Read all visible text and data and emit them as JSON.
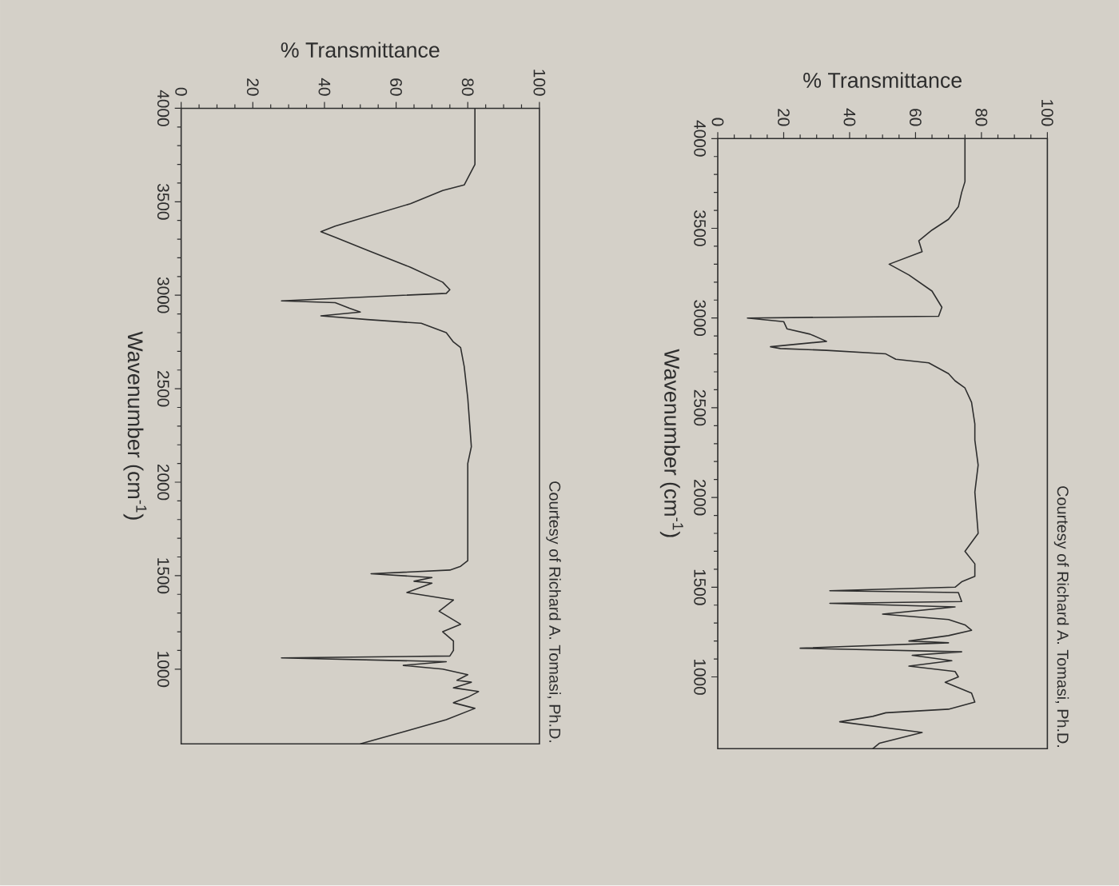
{
  "chart_data": [
    {
      "type": "line",
      "xlabel": "% Transmittance",
      "ylabel": "Wavenumber (cm$^{-1}$)",
      "color": "#2e2e2e",
      "xlim": [
        0,
        100
      ],
      "xticks": [
        0,
        20,
        40,
        60,
        80,
        100
      ],
      "ylim": [
        600,
        4000
      ],
      "yticks": [
        1000,
        1500,
        2000,
        2500,
        3000,
        3500,
        4000
      ],
      "annotations": [
        "Courtesy of Richard A. Tomasi, Ph.D."
      ],
      "x": [
        82,
        82,
        79,
        73,
        64,
        43,
        39,
        43,
        52,
        64,
        73,
        75,
        74,
        28,
        43,
        47,
        50,
        39,
        52,
        67,
        74,
        76,
        78,
        79,
        80,
        81,
        80,
        80,
        78,
        75,
        53,
        70,
        65,
        70,
        63,
        76,
        72,
        78,
        73,
        76,
        76,
        75,
        28,
        74,
        62,
        73,
        80,
        77,
        81,
        76,
        83,
        80,
        76,
        82,
        74,
        63,
        50
      ],
      "values": [
        4000,
        3700,
        3590,
        3560,
        3490,
        3370,
        3340,
        3310,
        3240,
        3150,
        3070,
        3030,
        3010,
        2970,
        2960,
        2930,
        2910,
        2890,
        2870,
        2850,
        2800,
        2750,
        2720,
        2620,
        2450,
        2190,
        2100,
        1580,
        1550,
        1530,
        1510,
        1490,
        1470,
        1460,
        1410,
        1370,
        1310,
        1240,
        1200,
        1150,
        1100,
        1070,
        1060,
        1040,
        1020,
        1000,
        970,
        940,
        930,
        900,
        880,
        850,
        820,
        790,
        730,
        670,
        600
      ]
    },
    {
      "type": "line",
      "xlabel": "% Transmittance",
      "ylabel": "Wavenumber (cm$^{-1}$)",
      "color": "#2e2e2e",
      "xlim": [
        0,
        100
      ],
      "xticks": [
        0,
        20,
        40,
        60,
        80,
        100
      ],
      "ylim": [
        600,
        4000
      ],
      "yticks": [
        1000,
        1500,
        2000,
        2500,
        3000,
        3500,
        4000
      ],
      "annotations": [
        "Courtesy of Richard A. Tomasi, Ph.D."
      ],
      "x": [
        75,
        75,
        74,
        73,
        70,
        65,
        61,
        62,
        52,
        58,
        65,
        68,
        67,
        9,
        20,
        21,
        28,
        33,
        16,
        19,
        33,
        51,
        54,
        64,
        68,
        70,
        72,
        75,
        77,
        78,
        78,
        79,
        78,
        79,
        75,
        78,
        78,
        74,
        72,
        34,
        73,
        74,
        34,
        72,
        50,
        70,
        75,
        77,
        70,
        58,
        70,
        25,
        74,
        59,
        71,
        58,
        72,
        73,
        69,
        77,
        78,
        70,
        51,
        47,
        37,
        62,
        49,
        47
      ],
      "values": [
        4000,
        3760,
        3700,
        3620,
        3550,
        3490,
        3430,
        3370,
        3300,
        3240,
        3150,
        3060,
        3010,
        3000,
        2980,
        2940,
        2910,
        2870,
        2840,
        2830,
        2820,
        2800,
        2770,
        2750,
        2710,
        2690,
        2650,
        2610,
        2530,
        2410,
        2320,
        2180,
        2030,
        1800,
        1700,
        1630,
        1560,
        1530,
        1500,
        1480,
        1470,
        1420,
        1410,
        1390,
        1350,
        1320,
        1290,
        1260,
        1230,
        1200,
        1190,
        1160,
        1140,
        1120,
        1090,
        1060,
        1030,
        1000,
        970,
        910,
        860,
        820,
        800,
        780,
        750,
        690,
        630,
        600
      ]
    }
  ]
}
